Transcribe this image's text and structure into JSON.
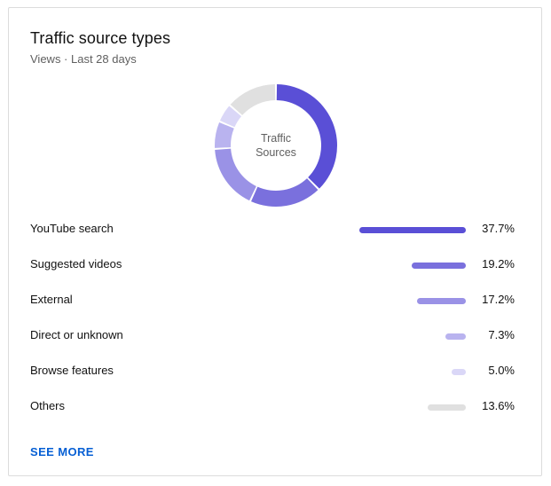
{
  "card": {
    "title": "Traffic source types",
    "subtitle": "Views · Last 28 days",
    "center_label_line1": "Traffic",
    "center_label_line2": "Sources",
    "see_more_label": "SEE MORE"
  },
  "chart_data": {
    "type": "pie",
    "donut": true,
    "title": "Traffic source types",
    "categories": [
      "YouTube search",
      "Suggested videos",
      "External",
      "Direct or unknown",
      "Browse features",
      "Others"
    ],
    "values": [
      37.7,
      19.2,
      17.2,
      7.3,
      5.0,
      13.6
    ],
    "value_labels": [
      "37.7%",
      "19.2%",
      "17.2%",
      "7.3%",
      "5.0%",
      "13.6%"
    ],
    "colors": [
      "#5a4fd6",
      "#7a70dd",
      "#9a92e6",
      "#b9b3ef",
      "#dad7f7",
      "#e0e0e0"
    ],
    "unit": "%"
  }
}
